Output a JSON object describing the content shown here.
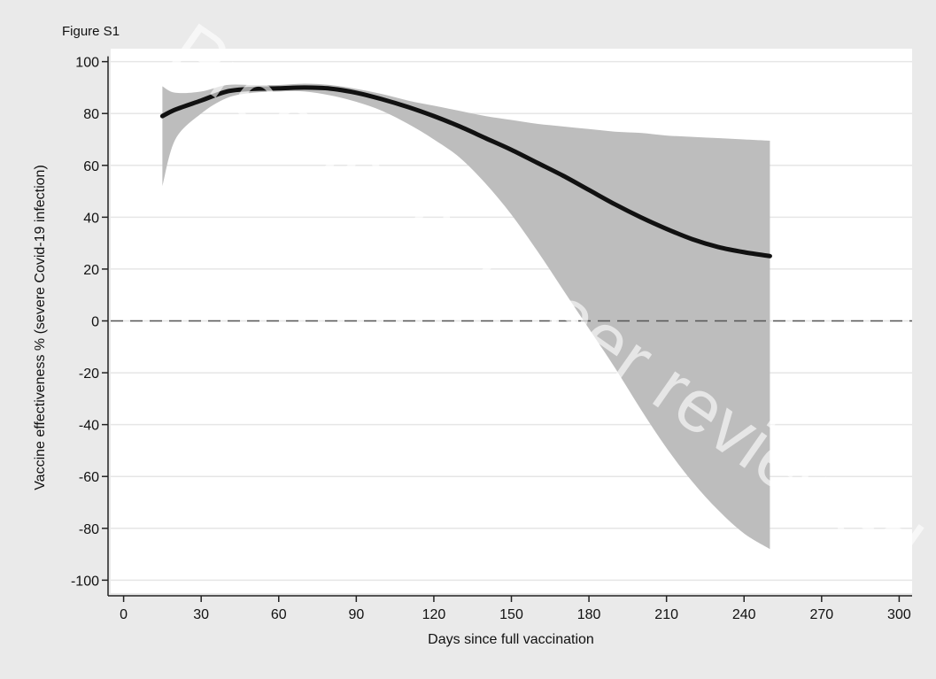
{
  "figure_label": "Figure S1",
  "watermark": "Preprint not peer reviewed",
  "chart_data": {
    "type": "line",
    "xlabel": "Days since full vaccination",
    "ylabel": "Vaccine effectiveness % (severe Covid-19 infection)",
    "xlim": [
      -5,
      305
    ],
    "ylim": [
      -105,
      105
    ],
    "xticks": [
      0,
      30,
      60,
      90,
      120,
      150,
      180,
      210,
      240,
      270,
      300
    ],
    "yticks": [
      100,
      80,
      60,
      40,
      20,
      0,
      -20,
      -40,
      -60,
      -80,
      -100
    ],
    "grid": "horizontal",
    "reference_line": {
      "y": 0,
      "style": "dashed"
    },
    "colors": {
      "line": "#111111",
      "band": "#bdbdbd",
      "plot_bg": "#ffffff",
      "page_bg": "#eaeaea",
      "grid": "#e6e6e6"
    },
    "series": [
      {
        "x": [
          15,
          20,
          30,
          40,
          50,
          60,
          70,
          80,
          90,
          100,
          110,
          120,
          130,
          140,
          150,
          160,
          170,
          180,
          190,
          200,
          210,
          220,
          230,
          240,
          250
        ],
        "estimate": [
          79,
          81.5,
          85,
          88.5,
          89.5,
          89.7,
          90,
          89.6,
          88,
          85.5,
          82.5,
          79,
          75,
          70.5,
          66,
          61,
          56,
          50.5,
          45,
          40,
          35.5,
          31.5,
          28.5,
          26.5,
          25
        ],
        "upper": [
          90.5,
          88,
          88.5,
          91,
          91,
          91,
          91.5,
          91,
          89.5,
          87.5,
          85,
          83,
          81,
          79,
          77.5,
          76,
          75,
          74,
          73,
          72.5,
          71.5,
          71,
          70.5,
          70,
          69.5
        ],
        "lower": [
          52,
          70,
          80,
          86,
          88,
          88.5,
          88.5,
          87,
          84.5,
          81,
          76,
          70,
          63,
          53,
          41,
          27,
          12,
          -3,
          -18,
          -34,
          -49,
          -62,
          -73,
          -82,
          -88
        ]
      }
    ]
  }
}
